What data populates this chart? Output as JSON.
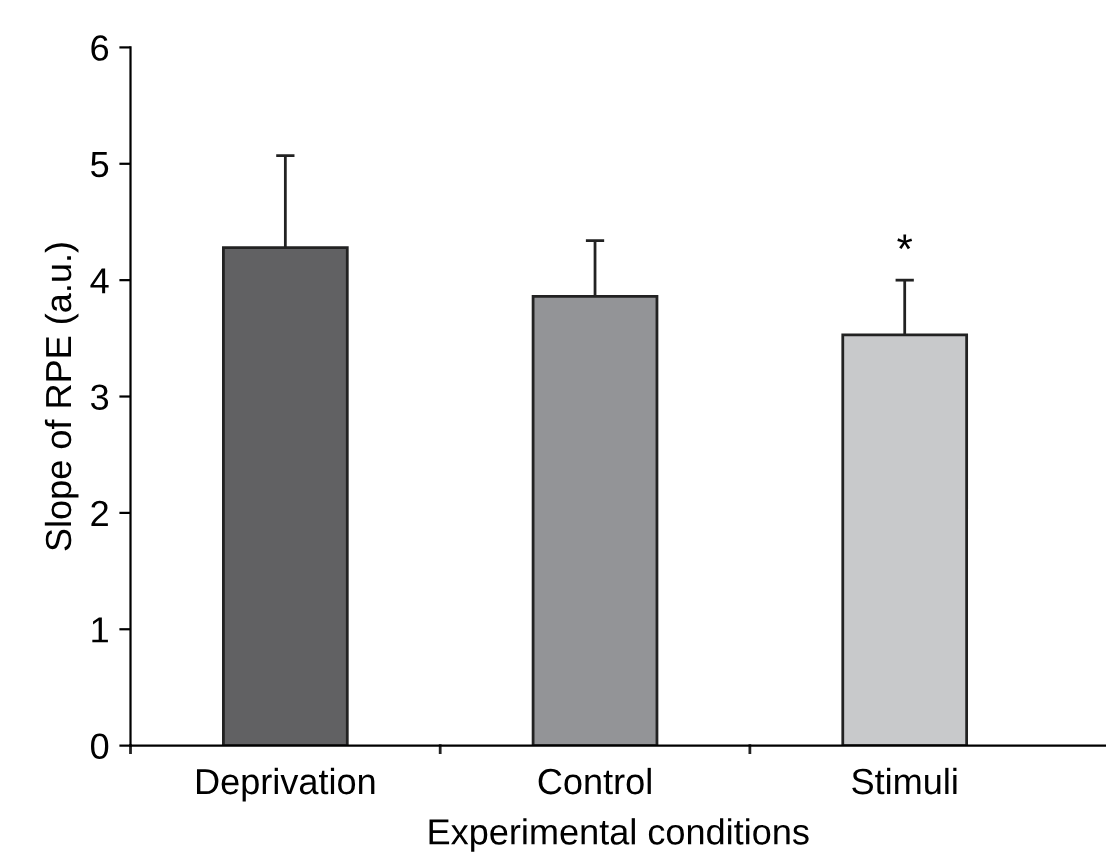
{
  "chart_data": {
    "type": "bar",
    "xlabel": "Experimental conditions",
    "ylabel": "Slope of RPE (a.u.)",
    "categories": [
      "Deprivation",
      "Control",
      "Stimuli"
    ],
    "values": [
      4.28,
      3.86,
      3.53
    ],
    "colors": [
      "#616163",
      "#939497",
      "#c8c9cb"
    ],
    "errors": [
      [
        4.28,
        5.07
      ],
      [
        3.86,
        4.34
      ],
      [
        3.53,
        4.0
      ]
    ],
    "ylim": [
      0,
      6
    ],
    "yticks": [
      0,
      1,
      2,
      3,
      4,
      5,
      6
    ],
    "grid": false,
    "legend": false,
    "annotations": [
      {
        "text": "*",
        "x": "Stimuli",
        "y": 4.0
      }
    ]
  }
}
